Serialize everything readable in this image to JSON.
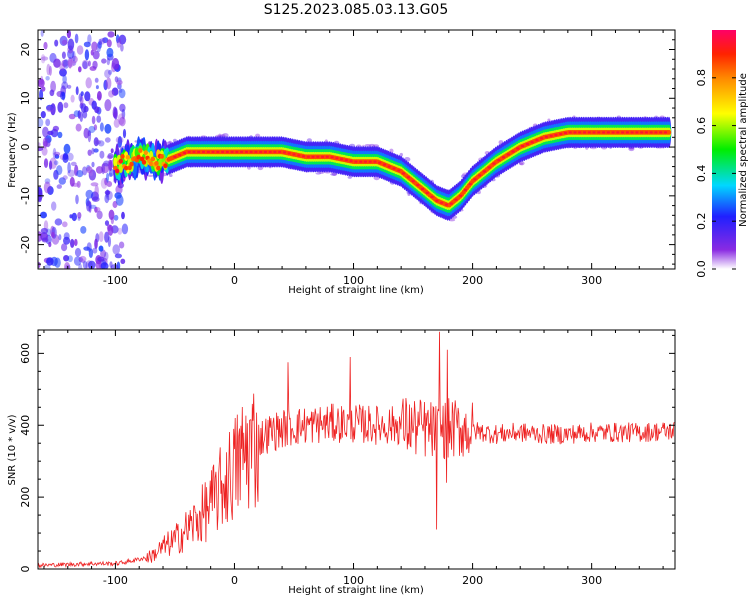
{
  "title": "S125.2023.085.03.13.G05",
  "colors": {
    "snr_line": "#ee2222",
    "frame": "#000000"
  },
  "chart_data": [
    {
      "type": "heatmap",
      "xlabel": "Height of straight line (km)",
      "ylabel": "Frequency (Hz)",
      "xlim": [
        -165,
        370
      ],
      "ylim": [
        -25,
        24
      ],
      "xticks": [
        -100,
        0,
        100,
        200,
        300
      ],
      "yticks": [
        -20,
        -10,
        0,
        10,
        20
      ],
      "colorbar": {
        "label": "Normalized spectral amplitude",
        "range": [
          0,
          1
        ],
        "ticks": [
          "0.0",
          "0.2",
          "0.4",
          "0.6",
          "0.8"
        ],
        "colormap": "rainbow (violet to red)"
      },
      "ridge": {
        "x": [
          -100,
          -80,
          -60,
          -40,
          -20,
          0,
          20,
          40,
          60,
          80,
          100,
          120,
          140,
          160,
          170,
          180,
          190,
          200,
          220,
          240,
          260,
          280,
          300,
          320,
          340,
          365
        ],
        "y": [
          -4,
          -2,
          -3,
          -1,
          -1,
          -1,
          -1,
          -1,
          -2,
          -2,
          -3,
          -3,
          -5,
          -9,
          -11,
          -12,
          -10,
          -7,
          -3,
          0,
          2,
          3,
          3,
          3,
          3,
          3
        ]
      },
      "noise_region_x": [
        -165,
        -100
      ]
    },
    {
      "type": "line",
      "xlabel": "Height of straight line (km)",
      "ylabel": "SNR (10 * v/v)",
      "xlim": [
        -165,
        370
      ],
      "ylim": [
        0,
        665
      ],
      "xticks": [
        -100,
        0,
        100,
        200,
        300
      ],
      "yticks": [
        0,
        200,
        400,
        600
      ],
      "envelope": {
        "x": [
          -165,
          -120,
          -100,
          -90,
          -70,
          -60,
          -50,
          -40,
          -30,
          -20,
          -10,
          0,
          10,
          20,
          30,
          40,
          60,
          80,
          100,
          120,
          140,
          160,
          170,
          180,
          190,
          200,
          220,
          240,
          260,
          280,
          300,
          320,
          340,
          370
        ],
        "y": [
          10,
          15,
          15,
          20,
          35,
          60,
          80,
          110,
          140,
          180,
          230,
          280,
          330,
          360,
          380,
          390,
          400,
          405,
          405,
          400,
          400,
          390,
          380,
          390,
          390,
          385,
          375,
          380,
          375,
          375,
          380,
          380,
          380,
          385
        ]
      },
      "spikes": [
        {
          "x": 172,
          "y": 660
        },
        {
          "x": 97,
          "y": 590
        },
        {
          "x": 45,
          "y": 575
        },
        {
          "x": 179,
          "y": 610
        },
        {
          "x": 170,
          "y": 110
        },
        {
          "x": 178,
          "y": 240
        }
      ]
    }
  ]
}
